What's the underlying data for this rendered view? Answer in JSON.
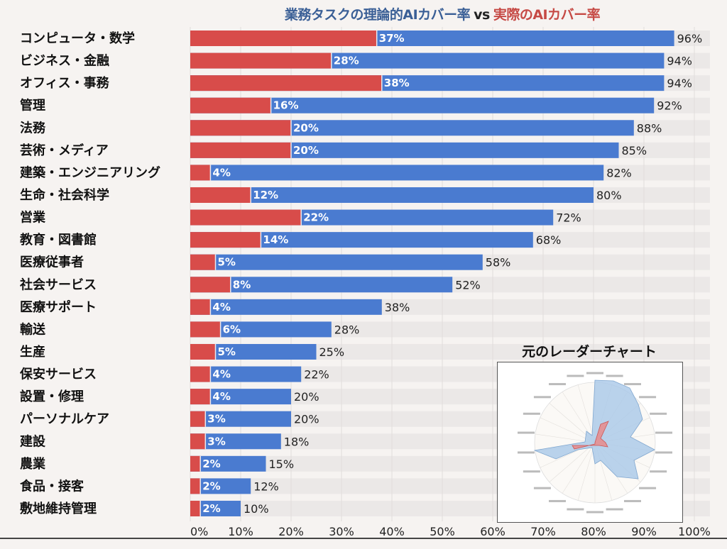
{
  "chart_data": {
    "type": "bar",
    "orientation": "horizontal",
    "stacked_overlay": true,
    "title_part1": "業務タスクの理論的AIカバー率",
    "title_vs": "vs",
    "title_part2": "実際のAIカバー率",
    "categories": [
      "コンピュータ・数学",
      "ビジネス・金融",
      "オフィス・事務",
      "管理",
      "法務",
      "芸術・メディア",
      "建築・エンジニアリング",
      "生命・社会科学",
      "営業",
      "教育・図書館",
      "医療従事者",
      "社会サービス",
      "医療サポート",
      "輸送",
      "生産",
      "保安サービス",
      "設置・修理",
      "パーソナルケア",
      "建設",
      "農業",
      "食品・接客",
      "敷地維持管理"
    ],
    "series": [
      {
        "name": "実際のAIカバー率",
        "color": "#d84c4a",
        "values": [
          37,
          28,
          38,
          16,
          20,
          20,
          4,
          12,
          22,
          14,
          5,
          8,
          4,
          6,
          5,
          4,
          4,
          3,
          3,
          2,
          2,
          2
        ]
      },
      {
        "name": "業務タスクの理論的AIカバー率",
        "color": "#4a7bd0",
        "values": [
          96,
          94,
          94,
          92,
          88,
          85,
          82,
          80,
          72,
          68,
          58,
          52,
          38,
          28,
          25,
          22,
          20,
          20,
          18,
          15,
          12,
          10
        ]
      }
    ],
    "xlim": [
      0,
      100
    ],
    "x_tick_labels": [
      "0%",
      "10%",
      "20%",
      "30%",
      "40%",
      "50%",
      "60%",
      "70%",
      "80%",
      "90%",
      "100%"
    ],
    "grid": true,
    "inset": {
      "title": "元のレーダーチャート",
      "type": "radar",
      "colors": [
        "#a9c8e8",
        "#e88b8b"
      ]
    }
  }
}
